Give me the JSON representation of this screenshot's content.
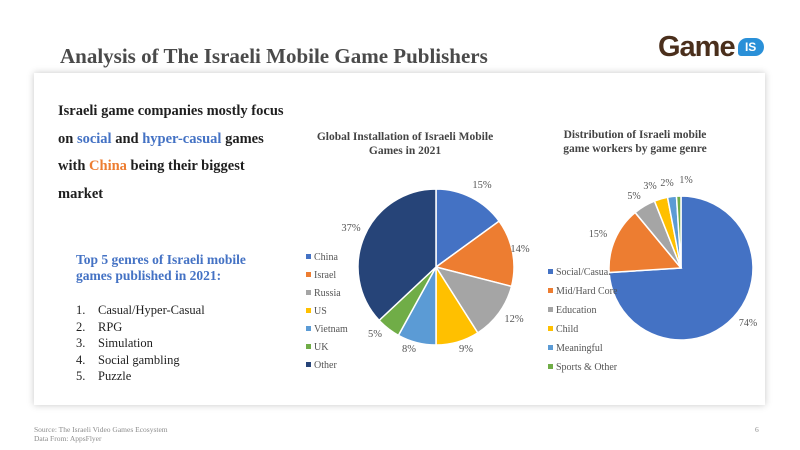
{
  "title": "Analysis of The Israeli Mobile Game Publishers",
  "logo": {
    "text": "Game",
    "badge": "IS",
    "colors": {
      "text": "#4a2f1c",
      "badge": "#2a90d8"
    }
  },
  "headline": {
    "t1": "Israeli game companies mostly focus on ",
    "h1": "social",
    "t2": " and ",
    "h2": "hyper-casual",
    "t3": " games with ",
    "h3": "China",
    "t4": " being their biggest market"
  },
  "genres": {
    "title": "Top 5 genres of Israeli mobile games published in 2021:",
    "items": [
      {
        "num": "1.",
        "label": "Casual/Hyper-Casual"
      },
      {
        "num": "2.",
        "label": "RPG"
      },
      {
        "num": "3.",
        "label": "Simulation"
      },
      {
        "num": "4.",
        "label": "Social gambling"
      },
      {
        "num": "5.",
        "label": "Puzzle"
      }
    ]
  },
  "chart_data": [
    {
      "type": "pie",
      "title": "Global Installation of Israeli Mobile Games in 2021",
      "legend": "left",
      "slices": [
        {
          "label": "China",
          "value": 15,
          "text": "15%",
          "color": "#4472c4"
        },
        {
          "label": "Israel",
          "value": 14,
          "text": "14%",
          "color": "#ed7d31"
        },
        {
          "label": "Russia",
          "value": 12,
          "text": "12%",
          "color": "#a5a5a5"
        },
        {
          "label": "US",
          "value": 9,
          "text": "9%",
          "color": "#ffc000"
        },
        {
          "label": "Vietnam",
          "value": 8,
          "text": "8%",
          "color": "#5b9bd5"
        },
        {
          "label": "UK",
          "value": 5,
          "text": "5%",
          "color": "#70ad47"
        },
        {
          "label": "Other",
          "value": 37,
          "text": "37%",
          "color": "#264478"
        }
      ]
    },
    {
      "type": "pie",
      "title": "Distribution of Israeli mobile game workers by game genre",
      "legend": "left",
      "slices": [
        {
          "label": "Social/Casual",
          "value": 74,
          "text": "74%",
          "color": "#4472c4"
        },
        {
          "label": "Mid/Hard Core",
          "value": 15,
          "text": "15%",
          "color": "#ed7d31"
        },
        {
          "label": "Education",
          "value": 5,
          "text": "5%",
          "color": "#a5a5a5"
        },
        {
          "label": "Child",
          "value": 3,
          "text": "3%",
          "color": "#ffc000"
        },
        {
          "label": "Meaningful",
          "value": 2,
          "text": "2%",
          "color": "#5b9bd5"
        },
        {
          "label": "Sports & Other",
          "value": 1,
          "text": "1%",
          "color": "#70ad47"
        }
      ]
    }
  ],
  "footer": {
    "source": "Source: The Israeli Video Games Ecosystem",
    "data_from": "Data From: AppsFlyer",
    "page": "6"
  }
}
